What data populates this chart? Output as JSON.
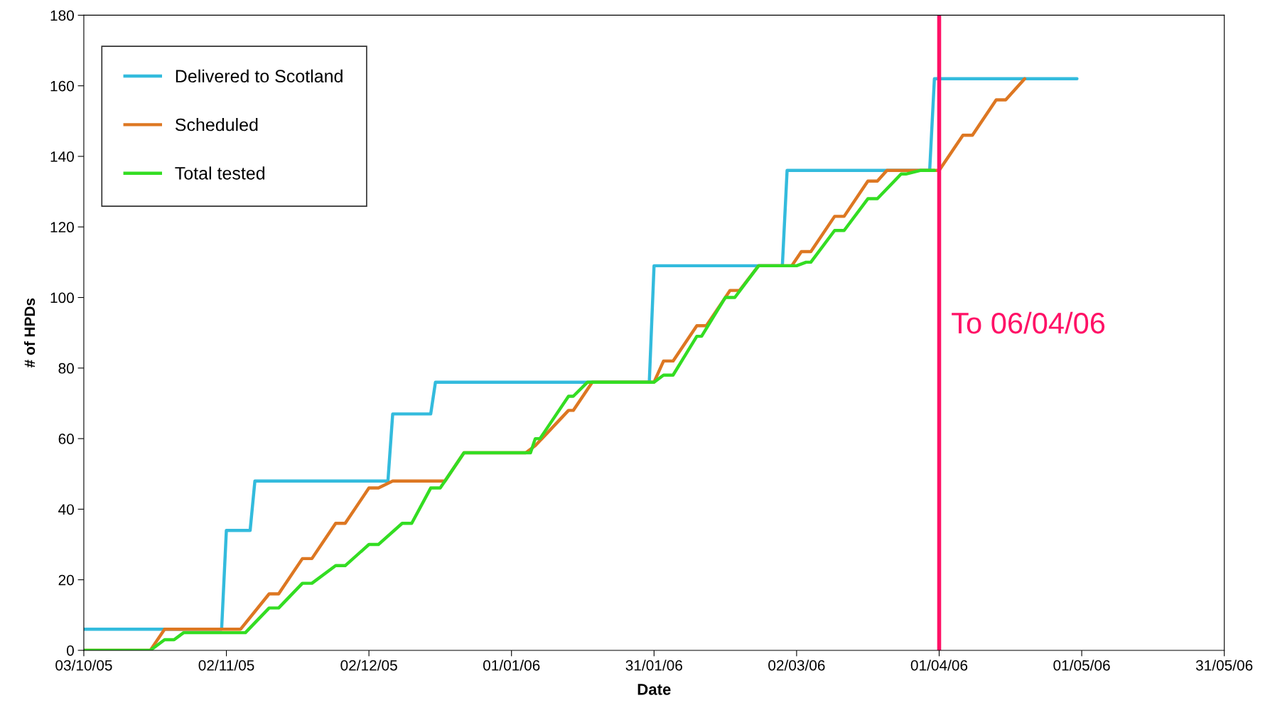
{
  "chart_data": {
    "type": "line",
    "xlabel": "Date",
    "ylabel": "# of HPDs",
    "xlim": [
      "2005-10-03",
      "2006-05-31"
    ],
    "xticks": [
      {
        "value": "2005-10-03",
        "label": "03/10/05"
      },
      {
        "value": "2005-11-02",
        "label": "02/11/05"
      },
      {
        "value": "2005-12-02",
        "label": "02/12/05"
      },
      {
        "value": "2006-01-01",
        "label": "01/01/06"
      },
      {
        "value": "2006-01-31",
        "label": "31/01/06"
      },
      {
        "value": "2006-03-02",
        "label": "02/03/06"
      },
      {
        "value": "2006-04-01",
        "label": "01/04/06"
      },
      {
        "value": "2006-05-01",
        "label": "01/05/06"
      },
      {
        "value": "2006-05-31",
        "label": "31/05/06"
      }
    ],
    "ylim": [
      0,
      180
    ],
    "yticks": [
      0,
      20,
      40,
      60,
      80,
      100,
      120,
      140,
      160,
      180
    ],
    "grid": false,
    "legend": "top left",
    "marker": "none",
    "line_style": "solid",
    "series": [
      {
        "name": "Delivered to Scotland",
        "color": "#33bbdd",
        "x": [
          "2005-10-03",
          "2005-11-01",
          "2005-11-02",
          "2005-11-07",
          "2005-11-08",
          "2005-12-06",
          "2005-12-07",
          "2005-12-15",
          "2005-12-16",
          "2006-01-30",
          "2006-01-31",
          "2006-02-27",
          "2006-02-28",
          "2006-03-30",
          "2006-03-31",
          "2006-04-30"
        ],
        "values": [
          6,
          6,
          34,
          34,
          48,
          48,
          67,
          67,
          76,
          76,
          109,
          109,
          136,
          136,
          162,
          162
        ]
      },
      {
        "name": "Scheduled",
        "color": "#dd7722",
        "x": [
          "2005-10-03",
          "2005-10-17",
          "2005-10-20",
          "2005-11-05",
          "2005-11-11",
          "2005-11-13",
          "2005-11-18",
          "2005-11-20",
          "2005-11-25",
          "2005-11-27",
          "2005-12-02",
          "2005-12-04",
          "2005-12-07",
          "2005-12-18",
          "2005-12-22",
          "2006-01-04",
          "2006-01-06",
          "2006-01-13",
          "2006-01-14",
          "2006-01-18",
          "2006-01-31",
          "2006-02-02",
          "2006-02-04",
          "2006-02-09",
          "2006-02-11",
          "2006-02-16",
          "2006-02-18",
          "2006-02-22",
          "2006-03-01",
          "2006-03-03",
          "2006-03-05",
          "2006-03-10",
          "2006-03-12",
          "2006-03-17",
          "2006-03-19",
          "2006-03-21",
          "2006-04-01",
          "2006-04-06",
          "2006-04-08",
          "2006-04-13",
          "2006-04-15",
          "2006-04-19"
        ],
        "values": [
          0,
          0,
          6,
          6,
          16,
          16,
          26,
          26,
          36,
          36,
          46,
          46,
          48,
          48,
          56,
          56,
          58,
          68,
          68,
          76,
          76,
          82,
          82,
          92,
          92,
          102,
          102,
          109,
          109,
          113,
          113,
          123,
          123,
          133,
          133,
          136,
          136,
          146,
          146,
          156,
          156,
          162
        ]
      },
      {
        "name": "Total tested",
        "color": "#33dd22",
        "x": [
          "2005-10-03",
          "2005-10-17",
          "2005-10-20",
          "2005-10-22",
          "2005-10-24",
          "2005-11-06",
          "2005-11-11",
          "2005-11-13",
          "2005-11-18",
          "2005-11-20",
          "2005-11-25",
          "2005-11-27",
          "2005-12-02",
          "2005-12-04",
          "2005-12-09",
          "2005-12-11",
          "2005-12-15",
          "2005-12-17",
          "2005-12-18",
          "2005-12-22",
          "2006-01-05",
          "2006-01-06",
          "2006-01-07",
          "2006-01-13",
          "2006-01-14",
          "2006-01-17",
          "2006-01-31",
          "2006-02-02",
          "2006-02-04",
          "2006-02-09",
          "2006-02-10",
          "2006-02-15",
          "2006-02-17",
          "2006-02-22",
          "2006-03-02",
          "2006-03-04",
          "2006-03-05",
          "2006-03-10",
          "2006-03-12",
          "2006-03-17",
          "2006-03-19",
          "2006-03-24",
          "2006-03-25",
          "2006-03-28",
          "2006-03-31"
        ],
        "values": [
          0,
          0,
          3,
          3,
          5,
          5,
          12,
          12,
          19,
          19,
          24,
          24,
          30,
          30,
          36,
          36,
          46,
          46,
          48,
          56,
          56,
          60,
          60,
          72,
          72,
          76,
          76,
          78,
          78,
          89,
          89,
          100,
          100,
          109,
          109,
          110,
          110,
          119,
          119,
          128,
          128,
          135,
          135,
          136,
          136
        ]
      }
    ],
    "ref_lines": [
      {
        "axis": "x",
        "value": "2006-04-01",
        "label": "To 06/04/06",
        "color": "#ff1166"
      }
    ]
  }
}
